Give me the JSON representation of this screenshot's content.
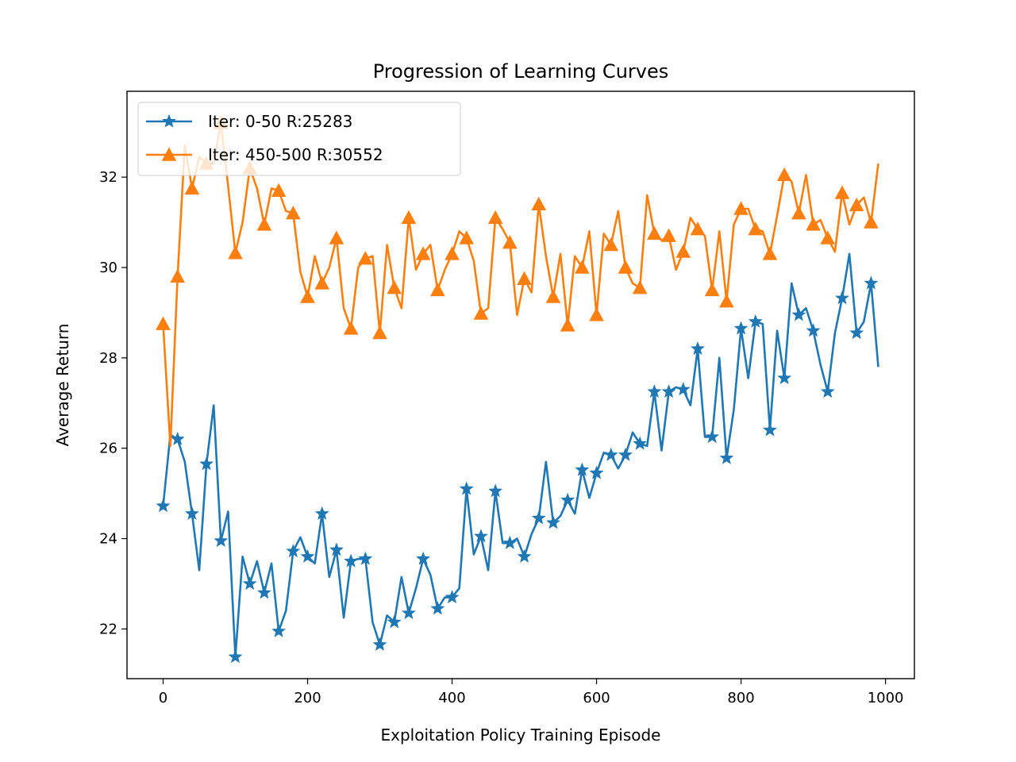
{
  "chart_data": {
    "type": "line",
    "title": "Progression of Learning Curves",
    "xlabel": "Exploitation Policy Training Episode",
    "ylabel": "Average Return",
    "xlim": [
      -50,
      1040
    ],
    "ylim": [
      20.9,
      33.9
    ],
    "xticks": [
      0,
      200,
      400,
      600,
      800,
      1000
    ],
    "yticks": [
      22,
      24,
      26,
      28,
      30,
      32
    ],
    "legend_position": "upper-left",
    "x": [
      0,
      10,
      20,
      30,
      40,
      50,
      60,
      70,
      80,
      90,
      100,
      110,
      120,
      130,
      140,
      150,
      160,
      170,
      180,
      190,
      200,
      210,
      220,
      230,
      240,
      250,
      260,
      270,
      280,
      290,
      300,
      310,
      320,
      330,
      340,
      350,
      360,
      370,
      380,
      390,
      400,
      410,
      420,
      430,
      440,
      450,
      460,
      470,
      480,
      490,
      500,
      510,
      520,
      530,
      540,
      550,
      560,
      570,
      580,
      590,
      600,
      610,
      620,
      630,
      640,
      650,
      660,
      670,
      680,
      690,
      700,
      710,
      720,
      730,
      740,
      750,
      760,
      770,
      780,
      790,
      800,
      810,
      820,
      830,
      840,
      850,
      860,
      870,
      880,
      890,
      900,
      910,
      920,
      930,
      940,
      950,
      960,
      970,
      980,
      990
    ],
    "series": [
      {
        "name": "Iter: 0-50 R:25283",
        "color": "#1f77b4",
        "marker": "star",
        "marker_every": 2,
        "values": [
          24.72,
          26.3,
          26.2,
          25.7,
          24.55,
          23.3,
          25.65,
          26.95,
          23.95,
          24.6,
          21.38,
          23.6,
          23.0,
          23.5,
          22.8,
          23.45,
          21.95,
          22.4,
          23.72,
          24.03,
          23.6,
          23.45,
          24.55,
          23.15,
          23.75,
          22.25,
          23.5,
          23.55,
          23.55,
          22.15,
          21.65,
          22.3,
          22.15,
          23.15,
          22.35,
          22.9,
          23.55,
          23.2,
          22.45,
          22.7,
          22.7,
          22.9,
          25.1,
          23.65,
          24.05,
          23.3,
          25.05,
          23.9,
          23.9,
          24.0,
          23.6,
          24.1,
          24.45,
          25.7,
          24.35,
          24.5,
          24.85,
          24.55,
          25.52,
          24.9,
          25.45,
          25.9,
          25.85,
          25.55,
          25.85,
          26.35,
          26.1,
          26.05,
          27.25,
          25.95,
          27.25,
          27.35,
          27.3,
          26.95,
          28.2,
          26.25,
          26.25,
          28.0,
          25.78,
          26.85,
          28.65,
          27.55,
          28.8,
          28.75,
          26.4,
          28.6,
          27.55,
          29.65,
          28.95,
          29.1,
          28.6,
          27.85,
          27.25,
          28.55,
          29.32,
          30.3,
          28.55,
          28.8,
          29.65,
          27.8
        ]
      },
      {
        "name": "Iter: 450-500 R:30552",
        "color": "#ff7f0e",
        "marker": "triangle",
        "marker_every": 2,
        "values": [
          28.75,
          26.05,
          29.8,
          32.7,
          31.75,
          32.45,
          32.3,
          32.3,
          33.2,
          31.8,
          30.32,
          31.0,
          32.2,
          31.75,
          30.95,
          31.75,
          31.7,
          31.25,
          31.2,
          29.9,
          29.35,
          30.25,
          29.65,
          30.0,
          30.65,
          29.1,
          28.65,
          30.0,
          30.2,
          30.25,
          28.55,
          30.5,
          29.55,
          29.1,
          31.1,
          29.95,
          30.3,
          30.5,
          29.5,
          29.95,
          30.3,
          30.8,
          30.65,
          30.15,
          28.98,
          29.1,
          31.1,
          30.85,
          30.55,
          28.95,
          29.75,
          29.45,
          31.4,
          30.25,
          29.35,
          30.3,
          28.72,
          30.25,
          30.0,
          30.8,
          28.95,
          30.75,
          30.5,
          31.25,
          30.0,
          29.65,
          29.55,
          31.6,
          30.75,
          30.6,
          30.7,
          29.95,
          30.35,
          31.1,
          30.85,
          30.7,
          29.5,
          30.8,
          29.25,
          30.95,
          31.3,
          31.3,
          30.85,
          30.8,
          30.3,
          31.15,
          32.05,
          31.9,
          31.2,
          32.05,
          30.95,
          31.05,
          30.65,
          30.35,
          31.65,
          30.95,
          31.38,
          31.55,
          31.0,
          32.3
        ]
      }
    ]
  }
}
